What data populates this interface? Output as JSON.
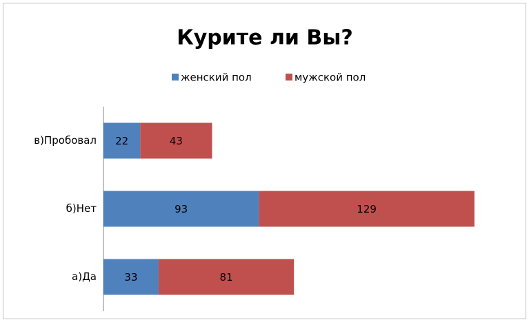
{
  "chart_data": {
    "type": "stacked-barh",
    "title": "Курите ли Вы?",
    "categories": [
      "в)Пробовал",
      "б)Нет",
      "а)Да"
    ],
    "series": [
      {
        "name": "женский пол",
        "color": "#4f81bd",
        "values": [
          22,
          93,
          33
        ]
      },
      {
        "name": "мужской пол",
        "color": "#c0504d",
        "values": [
          43,
          129,
          81
        ]
      }
    ],
    "legend": "top",
    "data_labels": true
  }
}
